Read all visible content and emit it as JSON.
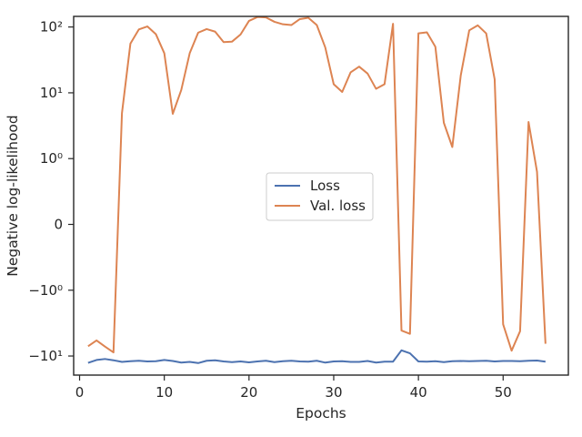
{
  "chart_data": {
    "type": "line",
    "xlabel": "Epochs",
    "ylabel": "Negative log-likelihood",
    "xlim": [
      -0.7,
      57.7
    ],
    "x_ticks": [
      0,
      10,
      20,
      30,
      40,
      50
    ],
    "yscale": "symlog",
    "ylim": [
      -19.5,
      145
    ],
    "y_ticks": [
      {
        "value": 100,
        "label": "10²"
      },
      {
        "value": 10,
        "label": "10¹"
      },
      {
        "value": 1,
        "label": "10⁰"
      },
      {
        "value": 0,
        "label": "0"
      },
      {
        "value": -1,
        "label": "−10⁰"
      },
      {
        "value": -10,
        "label": "−10¹"
      }
    ],
    "grid": false,
    "legend_position": "center",
    "series": [
      {
        "name": "Loss",
        "color": "#4c72b0",
        "x": [
          1,
          2,
          3,
          4,
          5,
          6,
          7,
          8,
          9,
          10,
          11,
          12,
          13,
          14,
          15,
          16,
          17,
          18,
          19,
          20,
          21,
          22,
          23,
          24,
          25,
          26,
          27,
          28,
          29,
          30,
          31,
          32,
          33,
          34,
          35,
          36,
          37,
          38,
          39,
          40,
          41,
          42,
          43,
          44,
          45,
          46,
          47,
          48,
          49,
          50,
          51,
          52,
          53,
          54,
          55
        ],
        "y": [
          -12.7,
          -11.5,
          -11.1,
          -11.6,
          -12.3,
          -12.0,
          -11.8,
          -12.1,
          -12.0,
          -11.5,
          -11.9,
          -12.6,
          -12.3,
          -12.8,
          -11.8,
          -11.6,
          -12.1,
          -12.4,
          -12.1,
          -12.5,
          -12.1,
          -11.8,
          -12.4,
          -12.0,
          -11.8,
          -12.1,
          -12.2,
          -11.8,
          -12.6,
          -12.1,
          -12.0,
          -12.3,
          -12.3,
          -11.9,
          -12.6,
          -12.2,
          -12.2,
          -8.2,
          -9.1,
          -12.1,
          -12.2,
          -12.0,
          -12.4,
          -12.0,
          -11.9,
          -12.0,
          -11.9,
          -11.8,
          -12.1,
          -11.9,
          -11.9,
          -12.0,
          -11.8,
          -11.7,
          -12.2
        ]
      },
      {
        "name": "Val. loss",
        "color": "#dd8452",
        "x": [
          1,
          2,
          3,
          4,
          5,
          6,
          7,
          8,
          9,
          10,
          11,
          12,
          13,
          14,
          15,
          16,
          17,
          18,
          19,
          20,
          21,
          22,
          23,
          24,
          25,
          26,
          27,
          28,
          29,
          30,
          31,
          32,
          33,
          34,
          35,
          36,
          37,
          38,
          39,
          40,
          41,
          42,
          43,
          44,
          45,
          46,
          47,
          48,
          49,
          50,
          51,
          52,
          53,
          54,
          55
        ],
        "y": [
          -7.1,
          -5.8,
          -7.2,
          -8.8,
          4.9,
          56,
          92,
          102,
          78,
          40,
          4.8,
          11,
          40,
          82,
          93,
          85,
          59,
          60,
          77,
          124,
          142,
          140,
          120,
          110,
          107,
          132,
          138,
          107,
          49,
          13.5,
          10.3,
          20.5,
          25,
          19.6,
          11.5,
          13.5,
          112,
          -4.1,
          -4.6,
          80,
          83,
          50,
          3.5,
          1.5,
          18.5,
          89,
          106,
          80,
          16,
          -3.3,
          -8.3,
          -4.2,
          3.6,
          0.8,
          -6.5
        ]
      }
    ]
  }
}
